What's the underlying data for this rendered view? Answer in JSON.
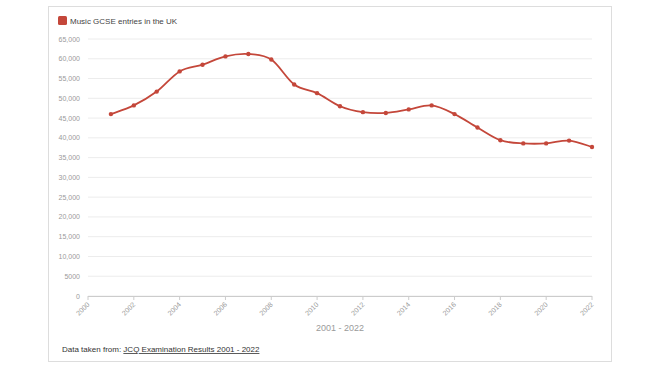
{
  "chart_data": {
    "type": "line",
    "xlabel": "2001 - 2022",
    "footer_text": "Data taken from: ",
    "footer_link": "JCQ Examination Results 2001 - 2022",
    "x": [
      2001,
      2002,
      2003,
      2004,
      2005,
      2006,
      2007,
      2008,
      2009,
      2010,
      2011,
      2012,
      2013,
      2014,
      2015,
      2016,
      2017,
      2018,
      2019,
      2020,
      2021,
      2022
    ],
    "series": [
      {
        "name": "Music GCSE entries in the UK",
        "color": "#c4473a",
        "marker": "circle",
        "line_style": "smooth",
        "values": [
          46000,
          48200,
          51700,
          56800,
          58500,
          60600,
          61200,
          59800,
          53500,
          51300,
          48000,
          46500,
          46300,
          47200,
          48200,
          46000,
          42600,
          39400,
          38600,
          38600,
          39300,
          37700
        ]
      }
    ],
    "xlim": [
      2000,
      2022
    ],
    "xticks": [
      2000,
      2002,
      2004,
      2006,
      2008,
      2010,
      2012,
      2014,
      2016,
      2018,
      2020,
      2022
    ],
    "ylim": [
      0,
      65000
    ],
    "yticks": [
      0,
      5000,
      {
        "value": 10000,
        "label": "10,000"
      },
      {
        "value": 15000,
        "label": "15,000"
      },
      {
        "value": 20000,
        "label": "20,000"
      },
      {
        "value": 25000,
        "label": "25,000"
      },
      {
        "value": 30000,
        "label": "30,000"
      },
      {
        "value": 35000,
        "label": "35,000"
      },
      {
        "value": 40000,
        "label": "40,000"
      },
      {
        "value": 45000,
        "label": "45,000"
      },
      {
        "value": 50000,
        "label": "50,000"
      },
      {
        "value": 55000,
        "label": "55,000"
      },
      {
        "value": 60000,
        "label": "60,000"
      },
      {
        "value": 65000,
        "label": "65,000"
      }
    ],
    "grid": true,
    "legend": "top-left"
  }
}
